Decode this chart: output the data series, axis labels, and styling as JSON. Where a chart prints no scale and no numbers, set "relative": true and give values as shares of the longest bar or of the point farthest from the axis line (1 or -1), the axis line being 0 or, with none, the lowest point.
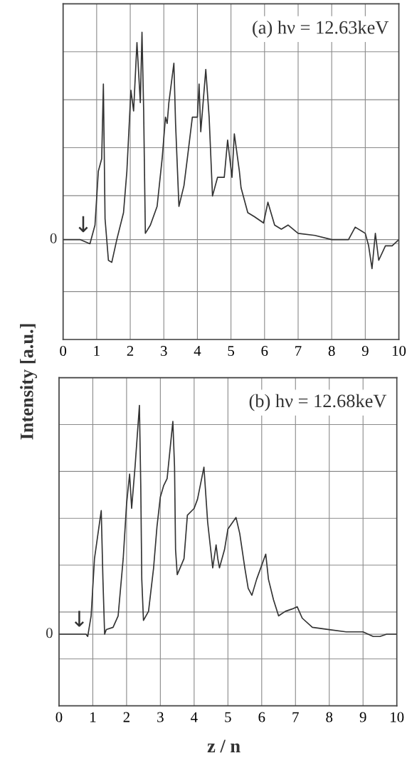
{
  "chart_data": [
    {
      "type": "line",
      "title": "(a) hν = 12.63keV",
      "ylabel": "Intensity [a.u.]",
      "relative": true,
      "xlim": [
        0,
        10
      ],
      "xticks": [
        0,
        1,
        2,
        3,
        4,
        5,
        6,
        7,
        8,
        9,
        10
      ],
      "grid": true,
      "legend": false,
      "tick_labels": "x",
      "ref_lines": [
        {
          "axis": "y",
          "value": 0,
          "label": "0"
        }
      ],
      "annotations": [
        {
          "text": "↓",
          "x": 0.6,
          "y": 0
        }
      ],
      "series": [
        {
          "color": "#333333",
          "x": [
            0,
            0.5,
            0.8,
            0.95,
            1.05,
            1.15,
            1.2,
            1.25,
            1.35,
            1.45,
            1.6,
            1.8,
            1.9,
            2.02,
            2.1,
            2.2,
            2.3,
            2.35,
            2.4,
            2.45,
            2.6,
            2.8,
            2.95,
            3.05,
            3.1,
            3.15,
            3.3,
            3.35,
            3.45,
            3.6,
            3.7,
            3.85,
            4.0,
            4.05,
            4.1,
            4.25,
            4.35,
            4.45,
            4.6,
            4.8,
            4.9,
            5.03,
            5.1,
            5.25,
            5.3,
            5.5,
            5.7,
            5.97,
            6.1,
            6.3,
            6.5,
            6.7,
            7.0,
            7.5,
            8.0,
            8.5,
            8.7,
            9.0,
            9.1,
            9.2,
            9.3,
            9.4,
            9.6,
            9.8,
            10
          ],
          "values": [
            0,
            0,
            -0.02,
            0.07,
            0.33,
            0.39,
            0.75,
            0.1,
            -0.1,
            -0.11,
            0,
            0.13,
            0.33,
            0.72,
            0.62,
            0.95,
            0.66,
            1,
            0.62,
            0.03,
            0.07,
            0.16,
            0.39,
            0.59,
            0.56,
            0.66,
            0.85,
            0.56,
            0.16,
            0.26,
            0.39,
            0.59,
            0.59,
            0.75,
            0.52,
            0.82,
            0.59,
            0.21,
            0.3,
            0.3,
            0.48,
            0.3,
            0.51,
            0.33,
            0.25,
            0.13,
            0.11,
            0.08,
            0.18,
            0.07,
            0.05,
            0.07,
            0.03,
            0.02,
            0,
            0,
            0.06,
            0.03,
            -0.03,
            -0.14,
            0.03,
            -0.1,
            -0.03,
            -0.03,
            0
          ]
        }
      ]
    },
    {
      "type": "line",
      "title": "(b) hν = 12.68keV",
      "xlabel": "z / n",
      "relative": true,
      "xlim": [
        0,
        10
      ],
      "xticks": [
        0,
        1,
        2,
        3,
        4,
        5,
        6,
        7,
        8,
        9,
        10
      ],
      "grid": true,
      "legend": false,
      "tick_labels": "x",
      "ref_lines": [
        {
          "axis": "y",
          "value": 0,
          "label": "0"
        }
      ],
      "annotations": [
        {
          "text": "↓",
          "x": 0.6,
          "y": 0
        }
      ],
      "series": [
        {
          "color": "#333333",
          "x": [
            0,
            0.8,
            0.85,
            0.95,
            1.05,
            1.25,
            1.3,
            1.35,
            1.4,
            1.6,
            1.75,
            1.9,
            2.0,
            2.09,
            2.15,
            2.25,
            2.38,
            2.42,
            2.45,
            2.5,
            2.65,
            2.8,
            2.9,
            3.0,
            3.1,
            3.2,
            3.37,
            3.42,
            3.45,
            3.5,
            3.7,
            3.8,
            4.0,
            4.1,
            4.29,
            4.4,
            4.55,
            4.65,
            4.7,
            4.75,
            4.9,
            5.0,
            5.24,
            5.35,
            5.5,
            5.6,
            5.71,
            5.85,
            6.12,
            6.2,
            6.35,
            6.5,
            6.7,
            6.9,
            7.05,
            7.2,
            7.5,
            8.0,
            8.5,
            9.0,
            9.3,
            9.5,
            9.7,
            10
          ],
          "values": [
            0,
            0,
            -0.01,
            0.08,
            0.33,
            0.54,
            0.24,
            0,
            0.02,
            0.03,
            0.08,
            0.33,
            0.57,
            0.7,
            0.55,
            0.73,
            1,
            0.65,
            0.24,
            0.06,
            0.1,
            0.29,
            0.47,
            0.6,
            0.65,
            0.68,
            0.93,
            0.73,
            0.37,
            0.26,
            0.33,
            0.52,
            0.55,
            0.59,
            0.73,
            0.49,
            0.29,
            0.39,
            0.33,
            0.29,
            0.37,
            0.46,
            0.51,
            0.44,
            0.29,
            0.2,
            0.17,
            0.24,
            0.35,
            0.24,
            0.15,
            0.08,
            0.1,
            0.11,
            0.12,
            0.07,
            0.03,
            0.02,
            0.01,
            0.01,
            -0.01,
            -0.01,
            0,
            0
          ]
        }
      ]
    }
  ]
}
